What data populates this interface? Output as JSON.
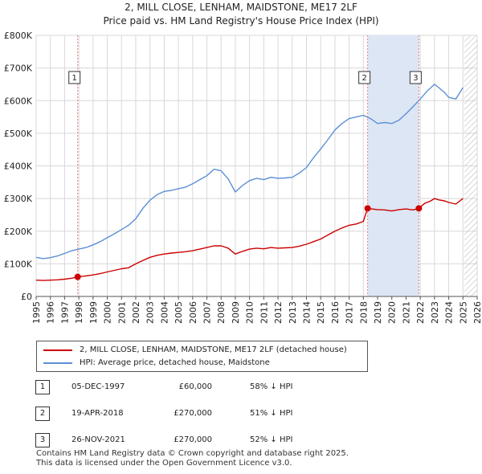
{
  "title_line1": "2, MILL CLOSE, LENHAM, MAIDSTONE, ME17 2LF",
  "title_line2": "Price paid vs. HM Land Registry's House Price Index (HPI)",
  "colors": {
    "property": "#cc0000",
    "hpi": "#5b8fd6",
    "marker_line": "#e87a7a",
    "shade": "#dde6f5",
    "hatch": "#b0b0b0"
  },
  "chart_data": {
    "type": "line",
    "title": "Price paid vs. HM Land Registry's House Price Index (HPI)",
    "xlim": [
      1995,
      2026
    ],
    "ylim": [
      0,
      800000
    ],
    "y_ticks": [
      {
        "value": 0,
        "label": "£0"
      },
      {
        "value": 100000,
        "label": "£100K"
      },
      {
        "value": 200000,
        "label": "£200K"
      },
      {
        "value": 300000,
        "label": "£300K"
      },
      {
        "value": 400000,
        "label": "£400K"
      },
      {
        "value": 500000,
        "label": "£500K"
      },
      {
        "value": 600000,
        "label": "£600K"
      },
      {
        "value": 700000,
        "label": "£700K"
      },
      {
        "value": 800000,
        "label": "£800K"
      }
    ],
    "x_ticks": [
      "1995",
      "1996",
      "1997",
      "1998",
      "1999",
      "2000",
      "2001",
      "2002",
      "2003",
      "2004",
      "2005",
      "2006",
      "2007",
      "2008",
      "2009",
      "2010",
      "2011",
      "2012",
      "2013",
      "2014",
      "2015",
      "2016",
      "2017",
      "2018",
      "2019",
      "2020",
      "2021",
      "2022",
      "2023",
      "2024",
      "2025",
      "2026"
    ],
    "shaded_ranges": [
      [
        2018.3,
        2021.9
      ]
    ],
    "hatched_from": 2025.1,
    "series": [
      {
        "name": "2, MILL CLOSE, LENHAM, MAIDSTONE, ME17 2LF (detached house)",
        "color": "#cc0000",
        "x": [
          1995.0,
          1995.5,
          1996.0,
          1996.5,
          1997.0,
          1997.5,
          1997.92,
          1998.5,
          1999.0,
          1999.5,
          2000.0,
          2000.5,
          2001.0,
          2001.5,
          2002.0,
          2002.5,
          2003.0,
          2003.5,
          2004.0,
          2004.5,
          2005.0,
          2005.5,
          2006.0,
          2006.5,
          2007.0,
          2007.5,
          2008.0,
          2008.5,
          2009.0,
          2009.5,
          2010.0,
          2010.5,
          2011.0,
          2011.5,
          2012.0,
          2012.5,
          2013.0,
          2013.5,
          2014.0,
          2014.5,
          2015.0,
          2015.5,
          2016.0,
          2016.5,
          2017.0,
          2017.5,
          2018.0,
          2018.29,
          2018.6,
          2019.0,
          2019.5,
          2020.0,
          2020.5,
          2021.0,
          2021.5,
          2021.9,
          2022.3,
          2022.7,
          2023.0,
          2023.3,
          2023.7,
          2024.0,
          2024.5,
          2025.0
        ],
        "values": [
          50000,
          49000,
          50000,
          51000,
          53000,
          56000,
          60000,
          63000,
          66000,
          70000,
          75000,
          80000,
          85000,
          88000,
          100000,
          110000,
          120000,
          126000,
          130000,
          133000,
          135000,
          137000,
          140000,
          145000,
          150000,
          155000,
          155000,
          148000,
          130000,
          138000,
          145000,
          148000,
          146000,
          150000,
          148000,
          149000,
          150000,
          154000,
          160000,
          168000,
          176000,
          188000,
          200000,
          210000,
          218000,
          222000,
          230000,
          270000,
          268000,
          266000,
          265000,
          262000,
          266000,
          268000,
          265000,
          270000,
          285000,
          292000,
          300000,
          296000,
          293000,
          288000,
          283000,
          300000
        ]
      },
      {
        "name": "HPI: Average price, detached house, Maidstone",
        "color": "#5b8fd6",
        "x": [
          1995.0,
          1995.5,
          1996.0,
          1996.5,
          1997.0,
          1997.5,
          1998.0,
          1998.5,
          1999.0,
          1999.5,
          2000.0,
          2000.5,
          2001.0,
          2001.5,
          2002.0,
          2002.5,
          2003.0,
          2003.5,
          2004.0,
          2004.5,
          2005.0,
          2005.5,
          2006.0,
          2006.5,
          2007.0,
          2007.5,
          2008.0,
          2008.5,
          2009.0,
          2009.5,
          2010.0,
          2010.5,
          2011.0,
          2011.5,
          2012.0,
          2012.5,
          2013.0,
          2013.5,
          2014.0,
          2014.5,
          2015.0,
          2015.5,
          2016.0,
          2016.5,
          2017.0,
          2017.5,
          2018.0,
          2018.5,
          2019.0,
          2019.5,
          2020.0,
          2020.5,
          2021.0,
          2021.5,
          2022.0,
          2022.5,
          2023.0,
          2023.3,
          2023.7,
          2024.0,
          2024.5,
          2025.0
        ],
        "values": [
          120000,
          116000,
          119000,
          124000,
          132000,
          140000,
          145000,
          150000,
          158000,
          168000,
          180000,
          192000,
          205000,
          218000,
          238000,
          270000,
          295000,
          312000,
          322000,
          325000,
          330000,
          335000,
          345000,
          358000,
          370000,
          390000,
          385000,
          360000,
          320000,
          340000,
          355000,
          362000,
          358000,
          365000,
          362000,
          363000,
          365000,
          378000,
          395000,
          425000,
          452000,
          480000,
          510000,
          530000,
          545000,
          550000,
          555000,
          545000,
          530000,
          533000,
          530000,
          540000,
          560000,
          582000,
          605000,
          630000,
          650000,
          640000,
          625000,
          610000,
          605000,
          640000
        ]
      }
    ],
    "sales": [
      {
        "num": "1",
        "x": 1997.92,
        "price": 60000,
        "date": "05-DEC-1997",
        "price_label": "£60,000",
        "hpi_label": "58% ↓ HPI"
      },
      {
        "num": "2",
        "x": 2018.3,
        "price": 270000,
        "date": "19-APR-2018",
        "price_label": "£270,000",
        "hpi_label": "51% ↓ HPI"
      },
      {
        "num": "3",
        "x": 2021.9,
        "price": 270000,
        "date": "26-NOV-2021",
        "price_label": "£270,000",
        "hpi_label": "52% ↓ HPI"
      }
    ]
  },
  "legend": {
    "property_label": "2, MILL CLOSE, LENHAM, MAIDSTONE, ME17 2LF (detached house)",
    "hpi_label": "HPI: Average price, detached house, Maidstone"
  },
  "footer": {
    "line1": "Contains HM Land Registry data © Crown copyright and database right 2025.",
    "line2": "This data is licensed under the Open Government Licence v3.0."
  }
}
